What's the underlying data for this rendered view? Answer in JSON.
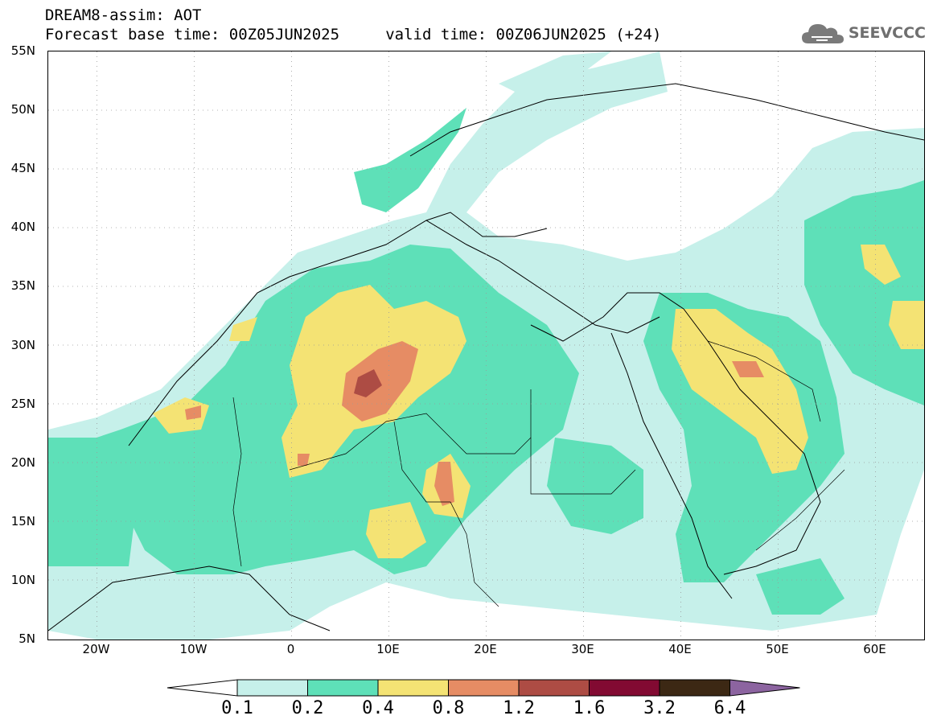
{
  "title": {
    "line1": "DREAM8-assim: AOT",
    "line2": "Forecast base time: 00Z05JUN2025     valid time: 00Z06JUN2025 (+24)"
  },
  "logo": {
    "text": "SEEVCCC",
    "icon": "cloud-icon"
  },
  "map": {
    "projection": "lat-lon",
    "lon_range": [
      -25,
      65
    ],
    "lat_range": [
      5,
      55
    ],
    "lat_labels": [
      "55N",
      "50N",
      "45N",
      "40N",
      "35N",
      "30N",
      "25N",
      "20N",
      "15N",
      "10N",
      "5N"
    ],
    "lon_labels": [
      "20W",
      "10W",
      "0",
      "10E",
      "20E",
      "30E",
      "40E",
      "50E",
      "60E"
    ],
    "grid": "dotted"
  },
  "colorbar": {
    "levels": [
      "0.1",
      "0.2",
      "0.4",
      "0.8",
      "1.2",
      "1.6",
      "3.2",
      "6.4"
    ],
    "colors": [
      "#c6f0ea",
      "#5ee0b8",
      "#f4e374",
      "#e68c64",
      "#ad4c44",
      "#820a32",
      "#3c2814",
      "#8c64a0"
    ],
    "under_color": "#ffffff"
  },
  "colors": {
    "aot_01": "#c6f0ea",
    "aot_02": "#5ee0b8",
    "aot_04": "#f4e374",
    "aot_08": "#e68c64",
    "aot_12": "#ad4c44",
    "aot_16": "#820a32"
  }
}
